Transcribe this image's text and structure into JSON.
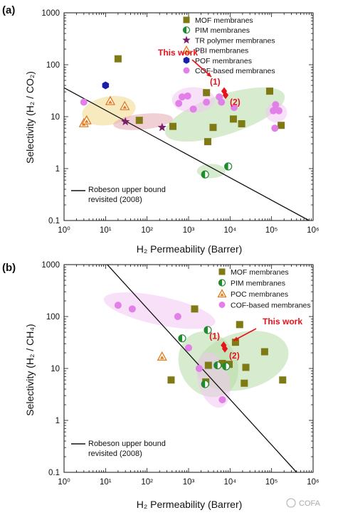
{
  "chart_data": [
    {
      "type": "scatter",
      "panel_label": "(a)",
      "xlabel": "H₂ Permeability (Barrer)",
      "ylabel": "Selectivity (H₂ / CO₂)",
      "xscale": "log",
      "yscale": "log",
      "xlim": [
        1,
        1000000
      ],
      "ylim": [
        0.1,
        1000
      ],
      "x_ticks": [
        "10⁰",
        "10¹",
        "10²",
        "10³",
        "10⁴",
        "10⁵",
        "10⁶"
      ],
      "y_ticks": [
        "0.1",
        "1",
        "10",
        "100",
        "1000"
      ],
      "legend_position": "top-right",
      "series": [
        {
          "name": "MOF membranes",
          "marker": "square",
          "color": "#7f7a14",
          "points": [
            [
              20,
              130
            ],
            [
              65,
              8.5
            ],
            [
              420,
              6.5
            ],
            [
              2700,
              29
            ],
            [
              2900,
              3.3
            ],
            [
              3900,
              6.2
            ],
            [
              12000,
              9
            ],
            [
              19000,
              7.3
            ],
            [
              90000,
              31
            ],
            [
              170000,
              6.8
            ]
          ]
        },
        {
          "name": "PIM membranes",
          "marker": "half-circle",
          "color": "#1e8c2d",
          "points": [
            [
              2500,
              0.77
            ],
            [
              9000,
              1.1
            ]
          ]
        },
        {
          "name": "TR polymer membranes",
          "marker": "star",
          "color": "#7b1f6b",
          "points": [
            [
              30,
              8
            ],
            [
              230,
              6.2
            ]
          ]
        },
        {
          "name": "PBI membranes",
          "marker": "triangle",
          "color": "#e07b1c",
          "points": [
            [
              3,
              7.5
            ],
            [
              3.5,
              8.5
            ],
            [
              13,
              20
            ],
            [
              29,
              16
            ]
          ]
        },
        {
          "name": "POF membranes",
          "marker": "hexagon",
          "color": "#1a1fa8",
          "points": [
            [
              10,
              40
            ]
          ]
        },
        {
          "name": "COF-based membranes",
          "marker": "circle",
          "color": "#e27fe8",
          "points": [
            [
              3,
              19
            ],
            [
              580,
              18
            ],
            [
              700,
              24
            ],
            [
              950,
              25
            ],
            [
              1300,
              14
            ],
            [
              2700,
              19
            ],
            [
              5500,
              24
            ],
            [
              6200,
              19
            ],
            [
              12500,
              15
            ],
            [
              110000,
              13
            ],
            [
              125000,
              17
            ],
            [
              150000,
              13
            ],
            [
              120000,
              6
            ]
          ]
        }
      ],
      "this_work": {
        "label": "This work",
        "marker": "diamond",
        "color": "#e8121b",
        "points": [
          {
            "label": "(1)",
            "x": 7200,
            "y": 31
          },
          {
            "label": "(2)",
            "x": 7800,
            "y": 26
          }
        ]
      },
      "upper_bound": {
        "label_line1": "Robeson upper bound",
        "label_line2": "revisited (2008)",
        "points": [
          [
            1,
            36
          ],
          [
            800000,
            0.1
          ]
        ]
      }
    },
    {
      "type": "scatter",
      "panel_label": "(b)",
      "xlabel": "H₂ Permeability (Barrer)",
      "ylabel": "Selectivity (H₂ / CH₄)",
      "xscale": "log",
      "yscale": "log",
      "xlim": [
        1,
        1000000
      ],
      "ylim": [
        0.1,
        1000
      ],
      "x_ticks": [
        "10⁰",
        "10¹",
        "10²",
        "10³",
        "10⁴",
        "10⁵",
        "10⁶"
      ],
      "y_ticks": [
        "0.1",
        "1",
        "10",
        "100",
        "1000"
      ],
      "legend_position": "top-right",
      "series": [
        {
          "name": "MOF membranes",
          "marker": "square",
          "color": "#7f7a14",
          "points": [
            [
              380,
              6
            ],
            [
              1400,
              140
            ],
            [
              3000,
              11.5
            ],
            [
              2600,
              5.5
            ],
            [
              6500,
              12.5
            ],
            [
              9500,
              12
            ],
            [
              13500,
              32
            ],
            [
              17000,
              70
            ],
            [
              22000,
              5.2
            ],
            [
              24000,
              10.5
            ],
            [
              68000,
              21
            ],
            [
              185000,
              6
            ]
          ]
        },
        {
          "name": "PIM membranes",
          "marker": "half-circle",
          "color": "#1e8c2d",
          "points": [
            [
              700,
              38
            ],
            [
              2900,
              55
            ],
            [
              2500,
              5
            ],
            [
              5000,
              11.5
            ],
            [
              8000,
              11
            ]
          ]
        },
        {
          "name": "POC membranes",
          "marker": "triangle",
          "color": "#e07b1c",
          "points": [
            [
              230,
              17
            ]
          ]
        },
        {
          "name": "COF-based membranes",
          "marker": "circle",
          "color": "#e27fe8",
          "points": [
            [
              20,
              165
            ],
            [
              44,
              140
            ],
            [
              550,
              100
            ],
            [
              1000,
              25
            ],
            [
              1800,
              10
            ],
            [
              6500,
              2.5
            ]
          ]
        }
      ],
      "this_work": {
        "label": "This work",
        "marker": "diamond",
        "color": "#e8121b",
        "points": [
          {
            "label": "(1)",
            "x": 7000,
            "y": 28
          },
          {
            "label": "(2)",
            "x": 7500,
            "y": 24
          }
        ]
      },
      "upper_bound": {
        "label_line1": "Robeson upper bound",
        "label_line2": "revisited (2008)",
        "points": [
          [
            11,
            1000
          ],
          [
            400000,
            0.1
          ]
        ]
      }
    }
  ],
  "watermark": "COFA"
}
